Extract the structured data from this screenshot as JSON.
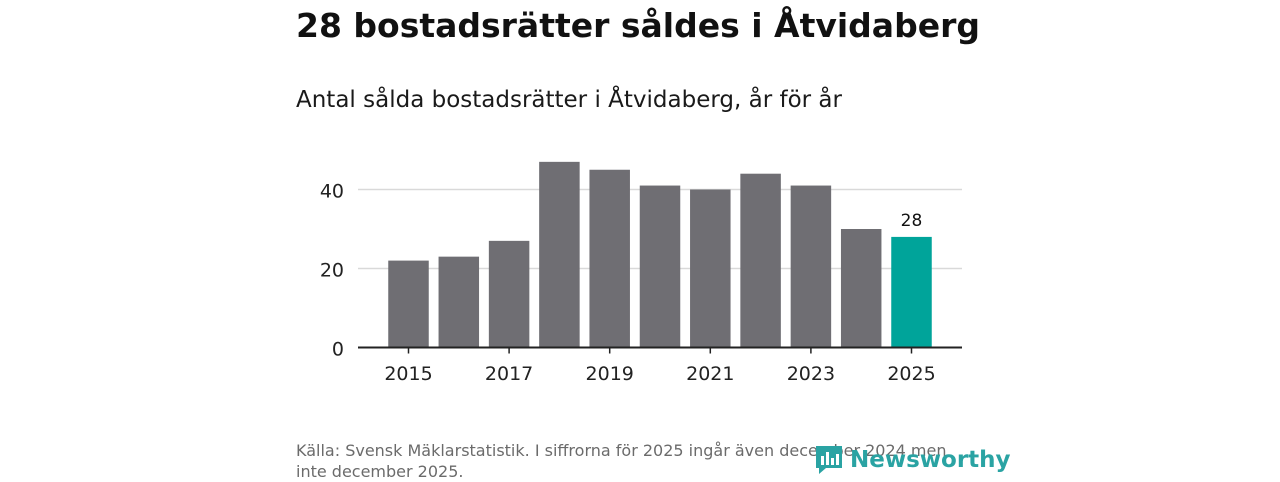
{
  "header": {
    "title": "28 bostadsrätter såldes i Åtvidaberg",
    "subtitle": "Antal sålda bostadsrätter i Åtvidaberg, år för år"
  },
  "footer": {
    "source": "Källa: Svensk Mäklarstatistik. I siffrorna för 2025 ingår även december 2024 men inte december 2025.",
    "brand": "Newsworthy"
  },
  "colors": {
    "bar": "#6f6e73",
    "highlight": "#00a49a",
    "grid": "#d9d9d9",
    "axis": "#222222",
    "brand": "#2aa3a3"
  },
  "chart_data": {
    "type": "bar",
    "title": "Antal sålda bostadsrätter i Åtvidaberg, år för år",
    "categories": [
      "2015",
      "2016",
      "2017",
      "2018",
      "2019",
      "2020",
      "2021",
      "2022",
      "2023",
      "2024",
      "2025"
    ],
    "values": [
      22,
      23,
      27,
      47,
      45,
      41,
      40,
      44,
      41,
      30,
      28
    ],
    "highlight_index": 10,
    "data_labels": [
      {
        "index": 10,
        "text": "28"
      }
    ],
    "x_tick_labels": [
      "2015",
      "2017",
      "2019",
      "2021",
      "2023",
      "2025"
    ],
    "y_ticks": [
      0,
      20,
      40
    ],
    "ylim": [
      0,
      50
    ],
    "xlabel": "",
    "ylabel": "",
    "grid": true,
    "legend": "none"
  }
}
